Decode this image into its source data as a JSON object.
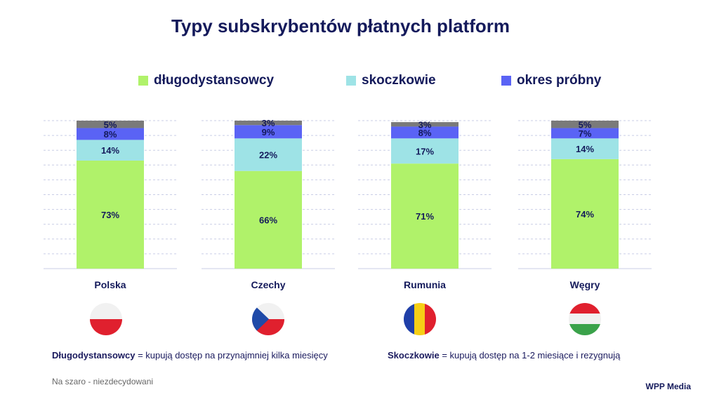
{
  "title": "Typy subskrybentów płatnych platform",
  "legend": [
    {
      "label": "długodystansowcy",
      "color": "#b0f26a"
    },
    {
      "label": "skoczkowie",
      "color": "#9ee3e6"
    },
    {
      "label": "okres próbny",
      "color": "#5a63f5"
    }
  ],
  "undecided_color": "#7a7a7a",
  "chart_data": {
    "type": "bar",
    "stacked": true,
    "categories": [
      "Polska",
      "Czechy",
      "Rumunia",
      "Węgry"
    ],
    "series": [
      {
        "name": "długodystansowcy",
        "values": [
          73,
          66,
          71,
          74
        ]
      },
      {
        "name": "skoczkowie",
        "values": [
          14,
          22,
          17,
          14
        ]
      },
      {
        "name": "okres próbny",
        "values": [
          8,
          9,
          8,
          7
        ]
      },
      {
        "name": "",
        "values": [
          5,
          3,
          3,
          5
        ]
      }
    ],
    "data_labels": [
      [
        "73%",
        "14%",
        "8%",
        "5%"
      ],
      [
        "66%",
        "22%",
        "9%",
        "3%"
      ],
      [
        "71%",
        "17%",
        "8%",
        "3%"
      ],
      [
        "74%",
        "14%",
        "7%",
        "5%"
      ]
    ],
    "ylim": [
      0,
      100
    ],
    "grid": true,
    "legend_position": "top"
  },
  "flags": [
    {
      "country": "Polska",
      "icon": "poland-flag-icon"
    },
    {
      "country": "Czechy",
      "icon": "czech-flag-icon"
    },
    {
      "country": "Rumunia",
      "icon": "romania-flag-icon"
    },
    {
      "country": "Węgry",
      "icon": "hungary-flag-icon"
    }
  ],
  "definitions": {
    "long_term_term": "Długodystansowcy",
    "long_term_def": " = kupują dostęp na przynajmniej kilka miesięcy",
    "jumpers_term": "Skoczkowie",
    "jumpers_def": " = kupują dostęp na 1-2 miesiące i rezygnują"
  },
  "footnote": "Na szaro - niezdecydowani",
  "brand": "WPP Media"
}
